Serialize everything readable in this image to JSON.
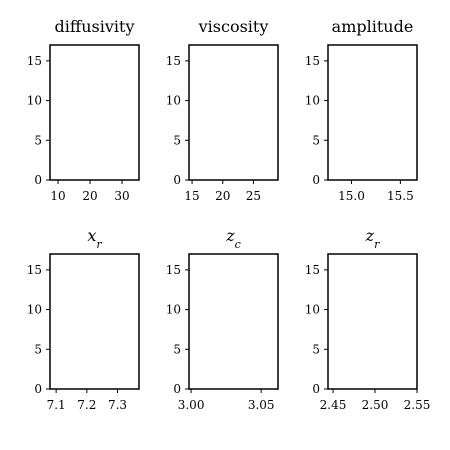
{
  "chart_data": [
    {
      "type": "scatter",
      "title": "diffusivity",
      "xlim": [
        7.5,
        35.3
      ],
      "xticks": [
        10,
        20,
        30
      ],
      "ylim": [
        0,
        17
      ],
      "yticks": [
        0,
        5,
        10,
        15
      ],
      "series": []
    },
    {
      "type": "scatter",
      "title": "viscosity",
      "xlim": [
        14.5,
        29
      ],
      "xticks": [
        15,
        20,
        25
      ],
      "ylim": [
        0,
        17
      ],
      "yticks": [
        0,
        5,
        10,
        15
      ],
      "series": []
    },
    {
      "type": "scatter",
      "title": "amplitude",
      "xlim": [
        14.76,
        15.67
      ],
      "xticks": [
        15.0,
        15.5
      ],
      "ylim": [
        0,
        17
      ],
      "yticks": [
        0,
        5,
        10,
        15
      ],
      "series": []
    },
    {
      "type": "scatter",
      "title": "x",
      "title_subscript": "r",
      "xlim": [
        7.08,
        7.37
      ],
      "xticks": [
        7.1,
        7.2,
        7.3
      ],
      "ylim": [
        0,
        17
      ],
      "yticks": [
        0,
        5,
        10,
        15
      ],
      "series": []
    },
    {
      "type": "scatter",
      "title": "z",
      "title_subscript": "c",
      "xlim": [
        2.9985,
        3.062
      ],
      "xticks": [
        3.0,
        3.05
      ],
      "ylim": [
        0,
        17
      ],
      "yticks": [
        0,
        5,
        10,
        15
      ],
      "series": []
    },
    {
      "type": "scatter",
      "title": "z",
      "title_subscript": "r",
      "xlim": [
        2.444,
        2.55
      ],
      "xticks": [
        2.45,
        2.5,
        2.55
      ],
      "ylim": [
        0,
        17
      ],
      "yticks": [
        0,
        5,
        10,
        15
      ],
      "series": []
    }
  ]
}
